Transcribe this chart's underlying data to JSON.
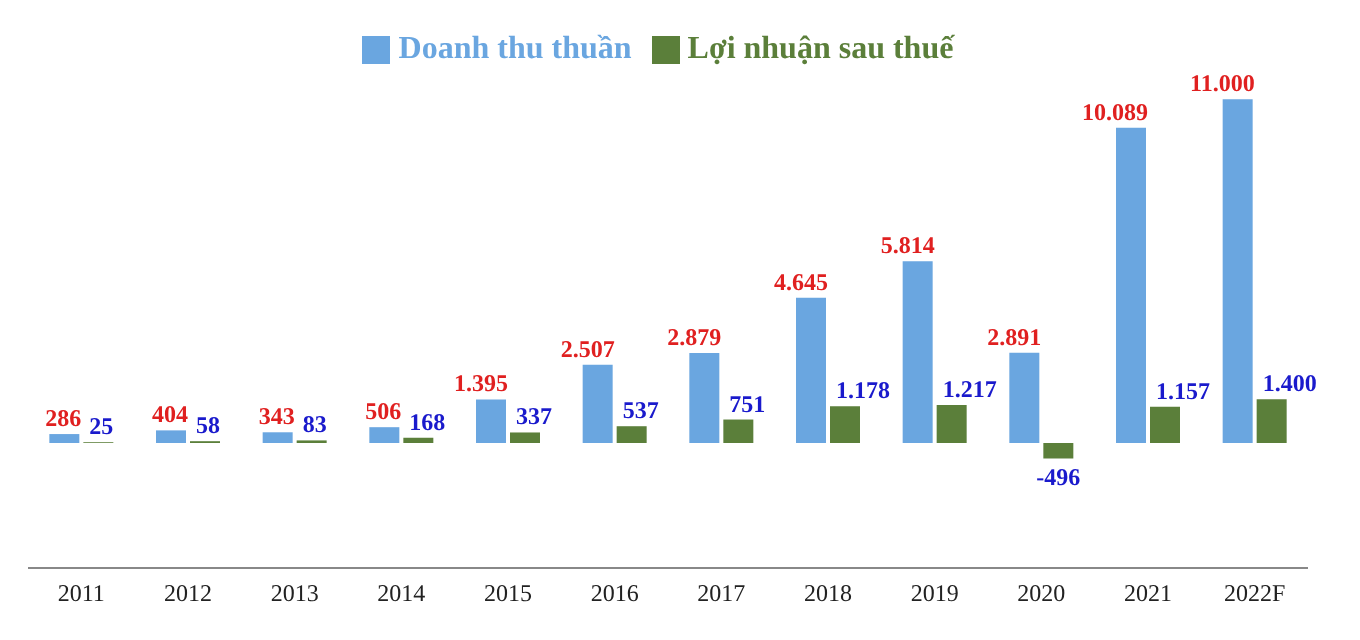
{
  "chart_data": {
    "type": "bar",
    "categories": [
      "2011",
      "2012",
      "2013",
      "2014",
      "2015",
      "2016",
      "2017",
      "2018",
      "2019",
      "2020",
      "2021",
      "2022F"
    ],
    "series": [
      {
        "name": "Doanh thu thuần",
        "color": "#6aa6e0",
        "values": [
          286,
          404,
          343,
          506,
          1395,
          2507,
          2879,
          4645,
          5814,
          2891,
          10089,
          11000
        ],
        "value_labels": [
          "286",
          "404",
          "343",
          "506",
          "1.395",
          "2.507",
          "2.879",
          "4.645",
          "5.814",
          "2.891",
          "10.089",
          "11.000"
        ]
      },
      {
        "name": "Lợi nhuận sau thuế",
        "color": "#5b7f3a",
        "values": [
          25,
          58,
          83,
          168,
          337,
          537,
          751,
          1178,
          1217,
          -496,
          1157,
          1400
        ],
        "value_labels": [
          "25",
          "58",
          "83",
          "168",
          "337",
          "537",
          "751",
          "1.178",
          "1.217",
          "-496",
          "1.157",
          "1.400"
        ]
      }
    ],
    "tick_labels": "x",
    "legend": "top"
  }
}
